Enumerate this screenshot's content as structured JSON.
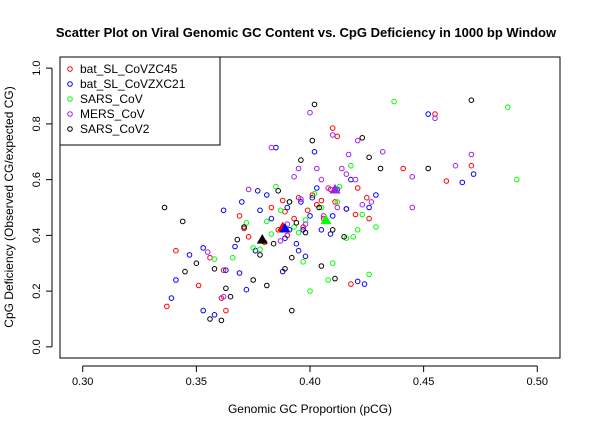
{
  "chart_data": {
    "type": "scatter",
    "title": "Scatter Plot on Viral Genomic GC Content vs. CpG Deficiency in 1000 bp Window",
    "xlabel": "Genomic GC Proportion (pCG)",
    "ylabel": "CpG Deficiency (Observed CG/expected CG)",
    "xlim": [
      0.29,
      0.51
    ],
    "ylim": [
      -0.04,
      1.04
    ],
    "x_ticks": [
      "0.30",
      "0.35",
      "0.40",
      "0.45",
      "0.50"
    ],
    "y_ticks": [
      "0.0",
      "0.2",
      "0.4",
      "0.6",
      "0.8",
      "1.0"
    ],
    "grid": false,
    "legend_position": "top-left",
    "series": [
      {
        "name": "bat_SL_CoVZC45",
        "color": "#ff0000",
        "marker": "circle",
        "points": [
          [
            0.337,
            0.145
          ],
          [
            0.341,
            0.345
          ],
          [
            0.351,
            0.22
          ],
          [
            0.356,
            0.32
          ],
          [
            0.361,
            0.175
          ],
          [
            0.362,
            0.275
          ],
          [
            0.363,
            0.13
          ],
          [
            0.369,
            0.47
          ],
          [
            0.371,
            0.425
          ],
          [
            0.373,
            0.395
          ],
          [
            0.376,
            0.345
          ],
          [
            0.38,
            0.375
          ],
          [
            0.383,
            0.5
          ],
          [
            0.386,
            0.42
          ],
          [
            0.388,
            0.525
          ],
          [
            0.389,
            0.485
          ],
          [
            0.39,
            0.4
          ],
          [
            0.393,
            0.46
          ],
          [
            0.395,
            0.535
          ],
          [
            0.397,
            0.43
          ],
          [
            0.399,
            0.49
          ],
          [
            0.401,
            0.545
          ],
          [
            0.403,
            0.51
          ],
          [
            0.405,
            0.525
          ],
          [
            0.406,
            0.46
          ],
          [
            0.407,
            0.455
          ],
          [
            0.409,
            0.565
          ],
          [
            0.41,
            0.785
          ],
          [
            0.411,
            0.52
          ],
          [
            0.412,
            0.755
          ],
          [
            0.416,
            0.495
          ],
          [
            0.418,
            0.225
          ],
          [
            0.42,
            0.475
          ],
          [
            0.421,
            0.57
          ],
          [
            0.425,
            0.535
          ],
          [
            0.426,
            0.46
          ],
          [
            0.441,
            0.64
          ],
          [
            0.455,
            0.835
          ],
          [
            0.46,
            0.595
          ],
          [
            0.471,
            0.65
          ]
        ]
      },
      {
        "name": "bat_SL_CoVZXC21",
        "color": "#0000ff",
        "marker": "circle",
        "points": [
          [
            0.339,
            0.175
          ],
          [
            0.341,
            0.24
          ],
          [
            0.347,
            0.33
          ],
          [
            0.353,
            0.355
          ],
          [
            0.353,
            0.13
          ],
          [
            0.358,
            0.115
          ],
          [
            0.362,
            0.49
          ],
          [
            0.363,
            0.275
          ],
          [
            0.367,
            0.36
          ],
          [
            0.369,
            0.265
          ],
          [
            0.37,
            0.52
          ],
          [
            0.372,
            0.205
          ],
          [
            0.376,
            0.345
          ],
          [
            0.377,
            0.56
          ],
          [
            0.378,
            0.49
          ],
          [
            0.381,
            0.545
          ],
          [
            0.383,
            0.46
          ],
          [
            0.385,
            0.715
          ],
          [
            0.388,
            0.27
          ],
          [
            0.389,
            0.39
          ],
          [
            0.39,
            0.5
          ],
          [
            0.391,
            0.42
          ],
          [
            0.394,
            0.37
          ],
          [
            0.395,
            0.345
          ],
          [
            0.396,
            0.52
          ],
          [
            0.397,
            0.42
          ],
          [
            0.398,
            0.325
          ],
          [
            0.4,
            0.47
          ],
          [
            0.401,
            0.535
          ],
          [
            0.402,
            0.7
          ],
          [
            0.403,
            0.57
          ],
          [
            0.405,
            0.42
          ],
          [
            0.409,
            0.405
          ],
          [
            0.41,
            0.47
          ],
          [
            0.412,
            0.565
          ],
          [
            0.416,
            0.495
          ],
          [
            0.418,
            0.6
          ],
          [
            0.421,
            0.235
          ],
          [
            0.424,
            0.225
          ],
          [
            0.426,
            0.5
          ],
          [
            0.429,
            0.545
          ],
          [
            0.452,
            0.835
          ],
          [
            0.467,
            0.59
          ],
          [
            0.472,
            0.62
          ]
        ]
      },
      {
        "name": "SARS_CoV",
        "color": "#00ff00",
        "marker": "circle",
        "points": [
          [
            0.358,
            0.315
          ],
          [
            0.366,
            0.32
          ],
          [
            0.372,
            0.445
          ],
          [
            0.375,
            0.355
          ],
          [
            0.378,
            0.35
          ],
          [
            0.381,
            0.45
          ],
          [
            0.383,
            0.405
          ],
          [
            0.385,
            0.575
          ],
          [
            0.387,
            0.49
          ],
          [
            0.391,
            0.52
          ],
          [
            0.393,
            0.43
          ],
          [
            0.395,
            0.41
          ],
          [
            0.397,
            0.305
          ],
          [
            0.398,
            0.455
          ],
          [
            0.4,
            0.2
          ],
          [
            0.402,
            0.55
          ],
          [
            0.405,
            0.5
          ],
          [
            0.408,
            0.24
          ],
          [
            0.41,
            0.3
          ],
          [
            0.412,
            0.52
          ],
          [
            0.413,
            0.575
          ],
          [
            0.416,
            0.39
          ],
          [
            0.418,
            0.65
          ],
          [
            0.419,
            0.395
          ],
          [
            0.421,
            0.42
          ],
          [
            0.423,
            0.475
          ],
          [
            0.426,
            0.26
          ],
          [
            0.429,
            0.43
          ],
          [
            0.437,
            0.88
          ],
          [
            0.487,
            0.86
          ],
          [
            0.491,
            0.6
          ]
        ]
      },
      {
        "name": "MERS_CoV",
        "color": "#a020f0",
        "marker": "circle",
        "points": [
          [
            0.355,
            0.34
          ],
          [
            0.362,
            0.18
          ],
          [
            0.373,
            0.565
          ],
          [
            0.383,
            0.715
          ],
          [
            0.387,
            0.38
          ],
          [
            0.39,
            0.44
          ],
          [
            0.393,
            0.61
          ],
          [
            0.395,
            0.64
          ],
          [
            0.396,
            0.53
          ],
          [
            0.398,
            0.44
          ],
          [
            0.4,
            0.84
          ],
          [
            0.403,
            0.64
          ],
          [
            0.405,
            0.6
          ],
          [
            0.406,
            0.47
          ],
          [
            0.408,
            0.57
          ],
          [
            0.41,
            0.76
          ],
          [
            0.412,
            0.5
          ],
          [
            0.414,
            0.64
          ],
          [
            0.416,
            0.62
          ],
          [
            0.417,
            0.69
          ],
          [
            0.42,
            0.6
          ],
          [
            0.421,
            0.74
          ],
          [
            0.423,
            0.51
          ],
          [
            0.427,
            0.52
          ],
          [
            0.432,
            0.7
          ],
          [
            0.445,
            0.61
          ],
          [
            0.445,
            0.5
          ],
          [
            0.455,
            0.82
          ],
          [
            0.464,
            0.65
          ],
          [
            0.471,
            0.69
          ]
        ]
      },
      {
        "name": "SARS_CoV2",
        "color": "#000000",
        "marker": "circle",
        "points": [
          [
            0.336,
            0.5
          ],
          [
            0.344,
            0.45
          ],
          [
            0.345,
            0.27
          ],
          [
            0.35,
            0.3
          ],
          [
            0.356,
            0.1
          ],
          [
            0.358,
            0.28
          ],
          [
            0.361,
            0.095
          ],
          [
            0.363,
            0.21
          ],
          [
            0.365,
            0.18
          ],
          [
            0.368,
            0.385
          ],
          [
            0.371,
            0.43
          ],
          [
            0.375,
            0.24
          ],
          [
            0.378,
            0.33
          ],
          [
            0.381,
            0.22
          ],
          [
            0.384,
            0.37
          ],
          [
            0.386,
            0.56
          ],
          [
            0.389,
            0.28
          ],
          [
            0.391,
            0.52
          ],
          [
            0.392,
            0.32
          ],
          [
            0.394,
            0.445
          ],
          [
            0.396,
            0.67
          ],
          [
            0.398,
            0.41
          ],
          [
            0.401,
            0.74
          ],
          [
            0.402,
            0.87
          ],
          [
            0.404,
            0.5
          ],
          [
            0.405,
            0.29
          ],
          [
            0.41,
            0.42
          ],
          [
            0.411,
            0.245
          ],
          [
            0.415,
            0.395
          ],
          [
            0.423,
            0.75
          ],
          [
            0.426,
            0.68
          ],
          [
            0.431,
            0.64
          ],
          [
            0.452,
            0.64
          ],
          [
            0.471,
            0.885
          ],
          [
            0.392,
            0.13
          ]
        ]
      }
    ],
    "highlights": [
      {
        "color": "#000000",
        "x": 0.379,
        "y": 0.385
      },
      {
        "color": "#ff0000",
        "x": 0.388,
        "y": 0.43
      },
      {
        "color": "#0000ff",
        "x": 0.389,
        "y": 0.425
      },
      {
        "color": "#00ff00",
        "x": 0.407,
        "y": 0.455
      },
      {
        "color": "#a020f0",
        "x": 0.411,
        "y": 0.565
      }
    ]
  }
}
